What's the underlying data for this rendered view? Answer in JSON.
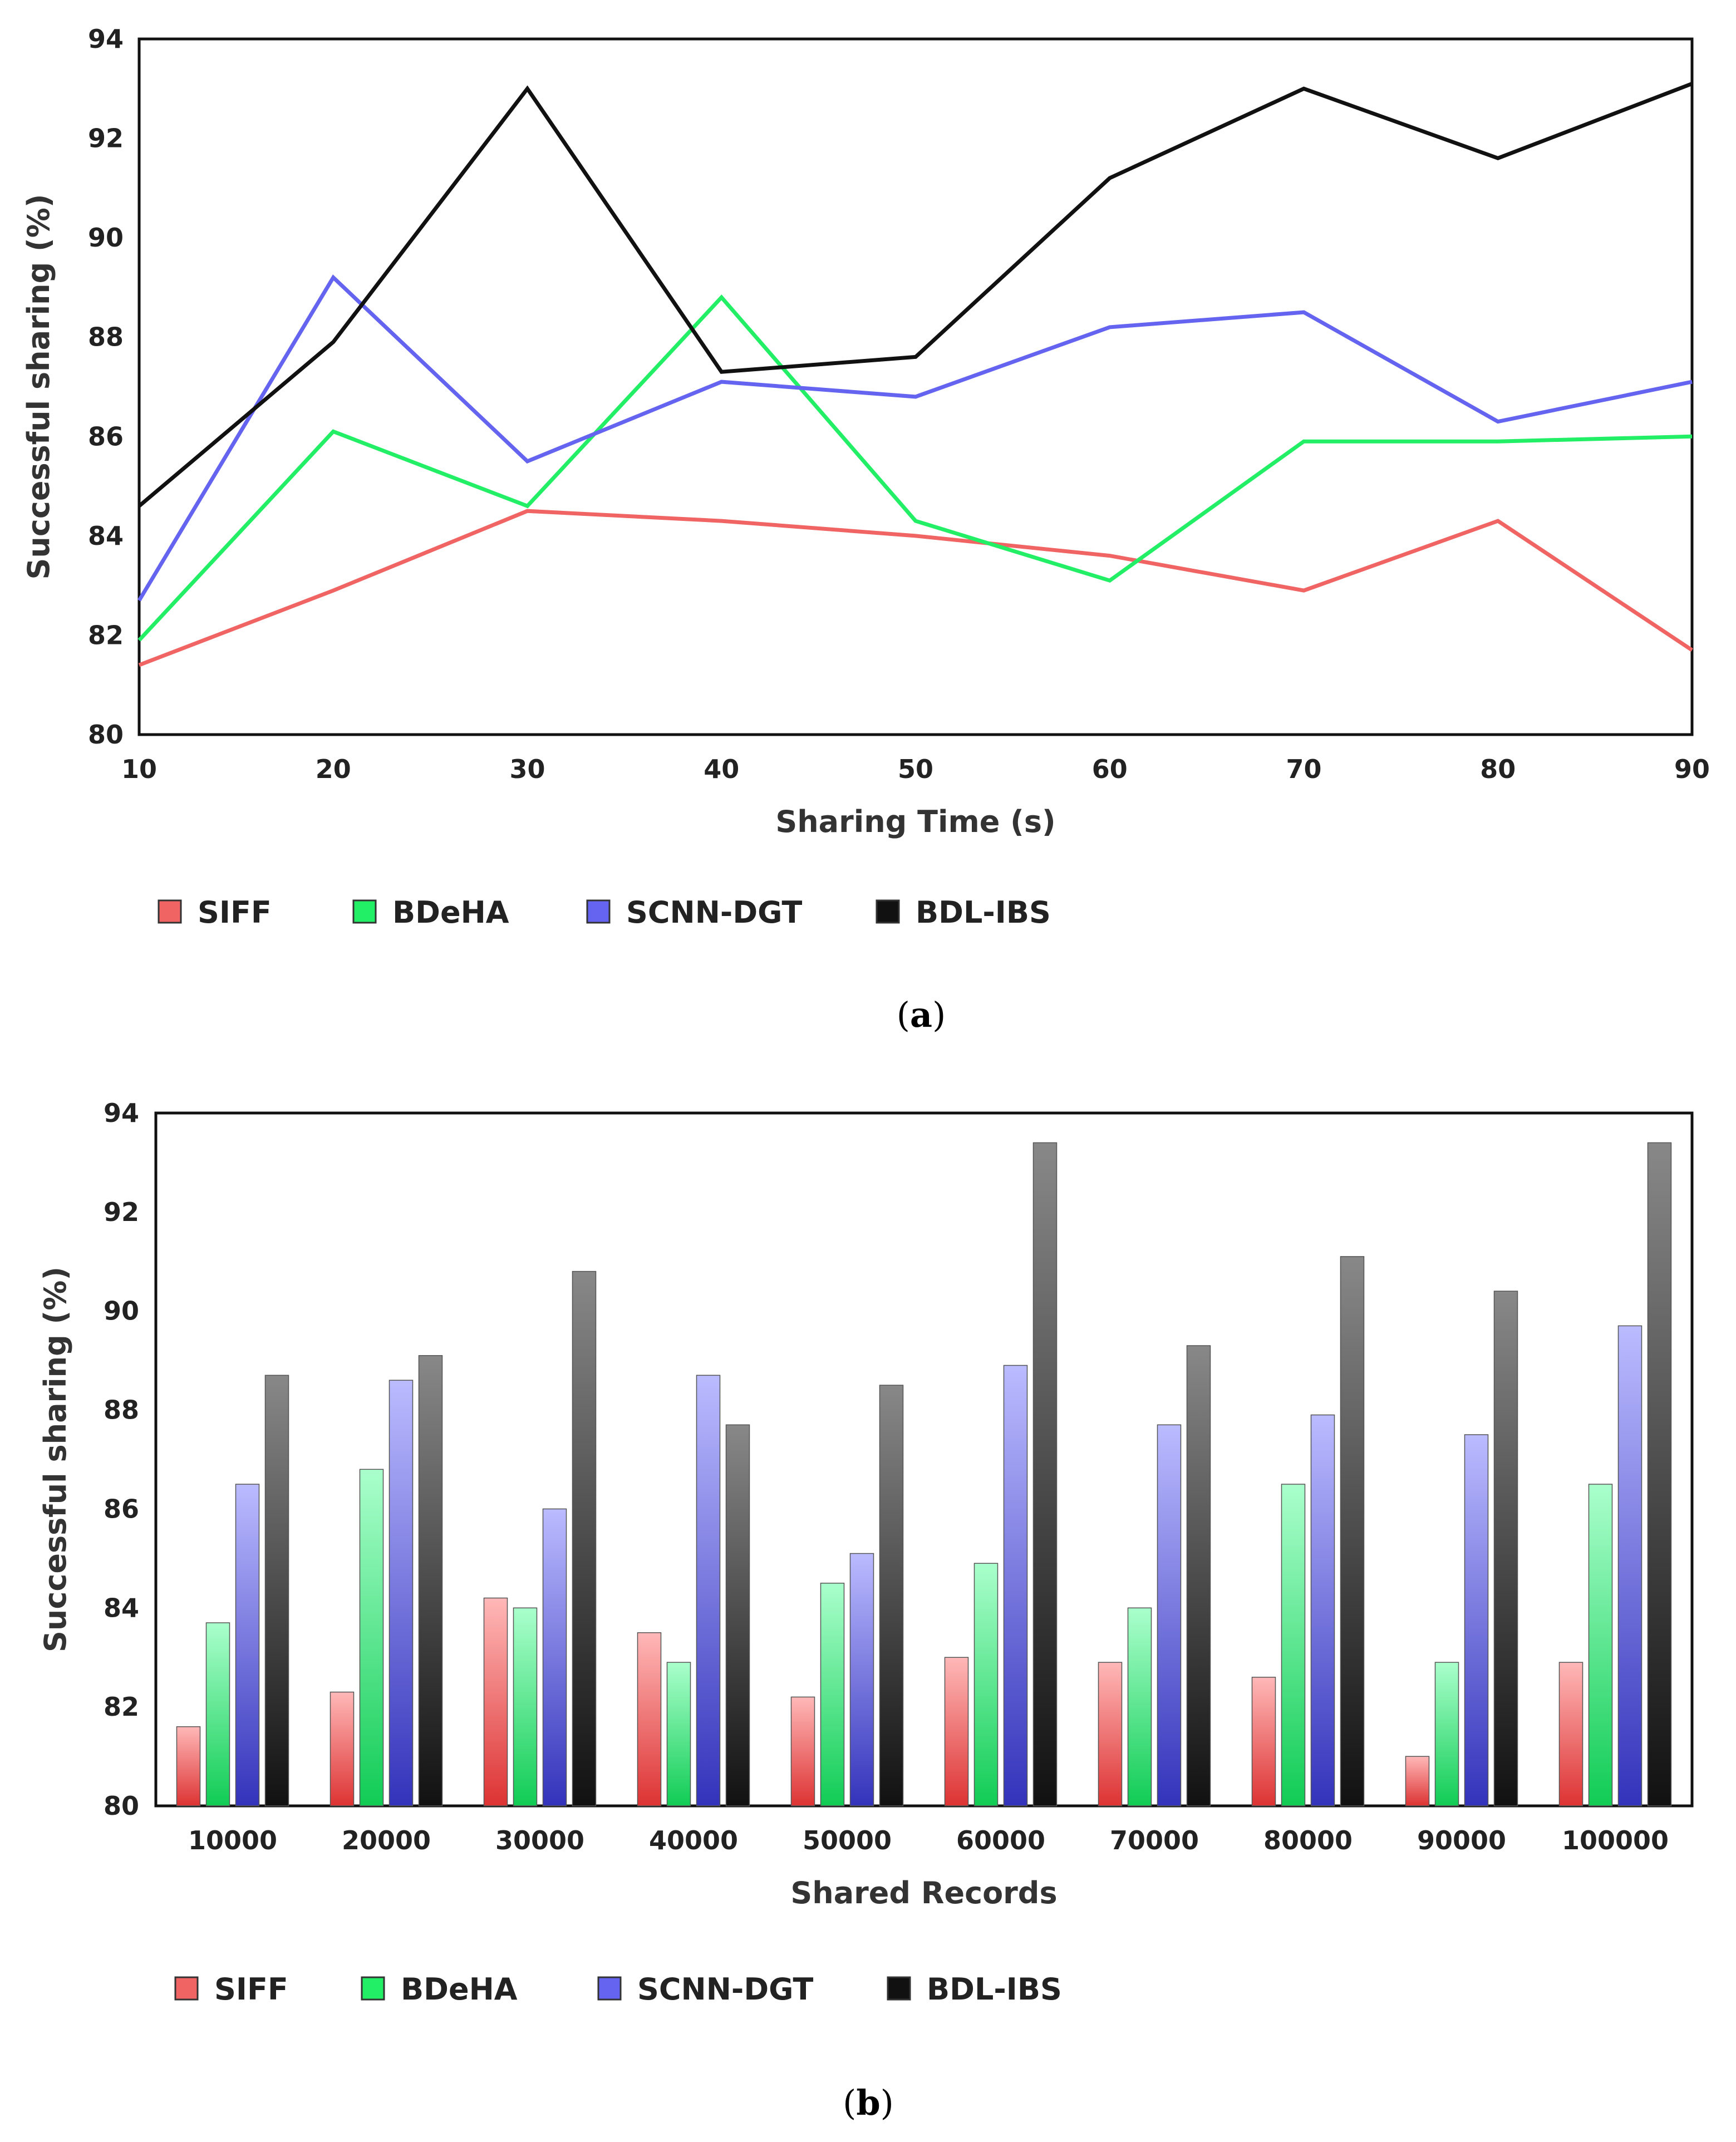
{
  "chart_data": [
    {
      "type": "line",
      "caption_letter": "a",
      "x": [
        10,
        20,
        30,
        40,
        50,
        60,
        70,
        80,
        90
      ],
      "series": [
        {
          "name": "SIFF",
          "color": "#f06464",
          "values": [
            81.4,
            82.9,
            84.5,
            84.3,
            84.0,
            83.6,
            82.9,
            84.3,
            81.7
          ]
        },
        {
          "name": "BDeHA",
          "color": "#22ee66",
          "values": [
            81.9,
            86.1,
            84.6,
            88.8,
            84.3,
            83.1,
            85.9,
            85.9,
            86.0
          ]
        },
        {
          "name": "SCNN-DGT",
          "color": "#6464f0",
          "values": [
            82.7,
            89.2,
            85.5,
            87.1,
            86.8,
            88.2,
            88.5,
            86.3,
            87.1
          ]
        },
        {
          "name": "BDL-IBS",
          "color": "#111111",
          "values": [
            84.6,
            87.9,
            93.0,
            87.3,
            87.6,
            91.2,
            93.0,
            91.6,
            93.1
          ]
        }
      ],
      "xlabel": "Sharing Time (s)",
      "ylabel": "Successful sharing (%)",
      "xlim": [
        10,
        90
      ],
      "ylim": [
        80,
        94
      ],
      "xticks": [
        "10",
        "20",
        "30",
        "40",
        "50",
        "60",
        "70",
        "80",
        "90"
      ],
      "yticks": [
        "80",
        "82",
        "84",
        "86",
        "88",
        "90",
        "92",
        "94"
      ],
      "grid": false,
      "legend_position": "bottom"
    },
    {
      "type": "bar",
      "caption_letter": "b",
      "categories": [
        "10000",
        "20000",
        "30000",
        "40000",
        "50000",
        "60000",
        "70000",
        "80000",
        "90000",
        "100000"
      ],
      "series": [
        {
          "name": "SIFF",
          "color": "#f06464",
          "values": [
            81.6,
            82.3,
            84.2,
            83.5,
            82.2,
            83.0,
            82.9,
            82.6,
            81.0,
            82.9
          ]
        },
        {
          "name": "BDeHA",
          "color": "#22ee66",
          "values": [
            83.7,
            86.8,
            84.0,
            82.9,
            84.5,
            84.9,
            84.0,
            86.5,
            82.9,
            86.5
          ]
        },
        {
          "name": "SCNN-DGT",
          "color": "#6464f0",
          "values": [
            86.5,
            88.6,
            86.0,
            88.7,
            85.1,
            88.9,
            87.7,
            87.9,
            87.5,
            89.7
          ]
        },
        {
          "name": "BDL-IBS",
          "color": "#111111",
          "values": [
            88.7,
            89.1,
            90.8,
            87.7,
            88.5,
            93.4,
            89.3,
            91.1,
            90.4,
            93.4
          ]
        }
      ],
      "xlabel": "Shared Records",
      "ylabel": "Successful sharing (%)",
      "ylim": [
        80,
        94
      ],
      "yticks": [
        "80",
        "82",
        "84",
        "86",
        "88",
        "90",
        "92",
        "94"
      ],
      "grid": false,
      "legend_position": "bottom"
    }
  ]
}
